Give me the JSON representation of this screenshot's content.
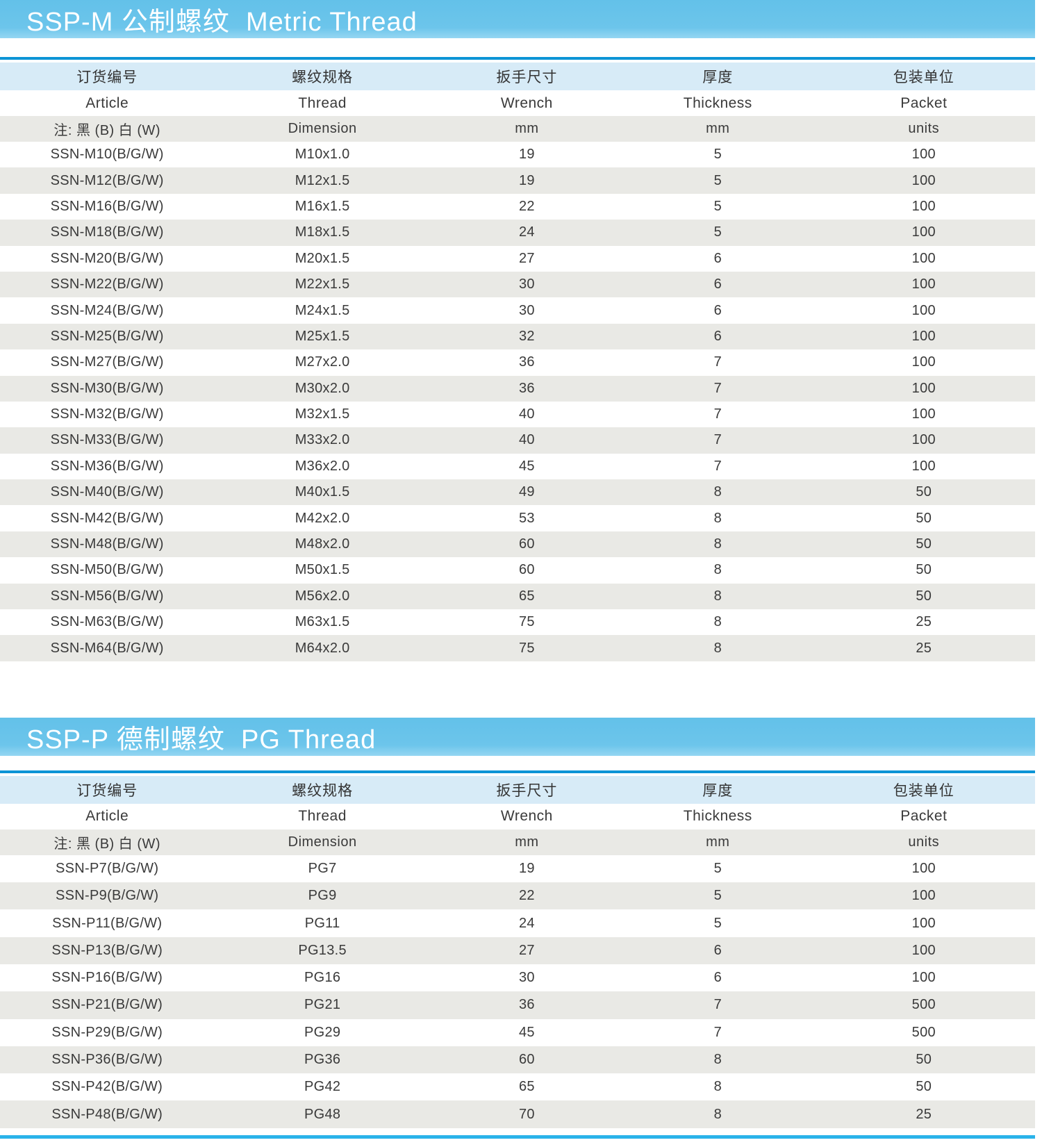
{
  "colors": {
    "banner_blue": "#6cc5eb",
    "banner_blue_light": "#95d6f2",
    "divider_blue": "#0c94d6",
    "header_row_blue": "#d7ebf7",
    "stripe_gray": "#e9e9e5",
    "row_white": "#ffffff",
    "text_dark": "#3a3a3a",
    "banner_text": "#ffffff",
    "bottom_line_blue": "#2ab3ea"
  },
  "columns_header": {
    "zh": [
      "订货编号",
      "螺纹规格",
      "扳手尺寸",
      "厚度",
      "包装单位"
    ],
    "en": [
      "Article",
      "Thread",
      "Wrench",
      "Thickness",
      "Packet"
    ],
    "sub": [
      "注: 黑 (B) 白 (W)",
      "Dimension",
      "mm",
      "mm",
      "units"
    ]
  },
  "sections": [
    {
      "title": "SSP-M 公制螺纹  Metric Thread",
      "rows": [
        [
          "SSN-M10(B/G/W)",
          "M10x1.0",
          "19",
          "5",
          "100"
        ],
        [
          "SSN-M12(B/G/W)",
          "M12x1.5",
          "19",
          "5",
          "100"
        ],
        [
          "SSN-M16(B/G/W)",
          "M16x1.5",
          "22",
          "5",
          "100"
        ],
        [
          "SSN-M18(B/G/W)",
          "M18x1.5",
          "24",
          "5",
          "100"
        ],
        [
          "SSN-M20(B/G/W)",
          "M20x1.5",
          "27",
          "6",
          "100"
        ],
        [
          "SSN-M22(B/G/W)",
          "M22x1.5",
          "30",
          "6",
          "100"
        ],
        [
          "SSN-M24(B/G/W)",
          "M24x1.5",
          "30",
          "6",
          "100"
        ],
        [
          "SSN-M25(B/G/W)",
          "M25x1.5",
          "32",
          "6",
          "100"
        ],
        [
          "SSN-M27(B/G/W)",
          "M27x2.0",
          "36",
          "7",
          "100"
        ],
        [
          "SSN-M30(B/G/W)",
          "M30x2.0",
          "36",
          "7",
          "100"
        ],
        [
          "SSN-M32(B/G/W)",
          "M32x1.5",
          "40",
          "7",
          "100"
        ],
        [
          "SSN-M33(B/G/W)",
          "M33x2.0",
          "40",
          "7",
          "100"
        ],
        [
          "SSN-M36(B/G/W)",
          "M36x2.0",
          "45",
          "7",
          "100"
        ],
        [
          "SSN-M40(B/G/W)",
          "M40x1.5",
          "49",
          "8",
          "50"
        ],
        [
          "SSN-M42(B/G/W)",
          "M42x2.0",
          "53",
          "8",
          "50"
        ],
        [
          "SSN-M48(B/G/W)",
          "M48x2.0",
          "60",
          "8",
          "50"
        ],
        [
          "SSN-M50(B/G/W)",
          "M50x1.5",
          "60",
          "8",
          "50"
        ],
        [
          "SSN-M56(B/G/W)",
          "M56x2.0",
          "65",
          "8",
          "50"
        ],
        [
          "SSN-M63(B/G/W)",
          "M63x1.5",
          "75",
          "8",
          "25"
        ],
        [
          "SSN-M64(B/G/W)",
          "M64x2.0",
          "75",
          "8",
          "25"
        ]
      ]
    },
    {
      "title": "SSP-P 德制螺纹  PG Thread",
      "rows": [
        [
          "SSN-P7(B/G/W)",
          "PG7",
          "19",
          "5",
          "100"
        ],
        [
          "SSN-P9(B/G/W)",
          "PG9",
          "22",
          "5",
          "100"
        ],
        [
          "SSN-P11(B/G/W)",
          "PG11",
          "24",
          "5",
          "100"
        ],
        [
          "SSN-P13(B/G/W)",
          "PG13.5",
          "27",
          "6",
          "100"
        ],
        [
          "SSN-P16(B/G/W)",
          "PG16",
          "30",
          "6",
          "100"
        ],
        [
          "SSN-P21(B/G/W)",
          "PG21",
          "36",
          "7",
          "500"
        ],
        [
          "SSN-P29(B/G/W)",
          "PG29",
          "45",
          "7",
          "500"
        ],
        [
          "SSN-P36(B/G/W)",
          "PG36",
          "60",
          "8",
          "50"
        ],
        [
          "SSN-P42(B/G/W)",
          "PG42",
          "65",
          "8",
          "50"
        ],
        [
          "SSN-P48(B/G/W)",
          "PG48",
          "70",
          "8",
          "25"
        ]
      ]
    }
  ]
}
